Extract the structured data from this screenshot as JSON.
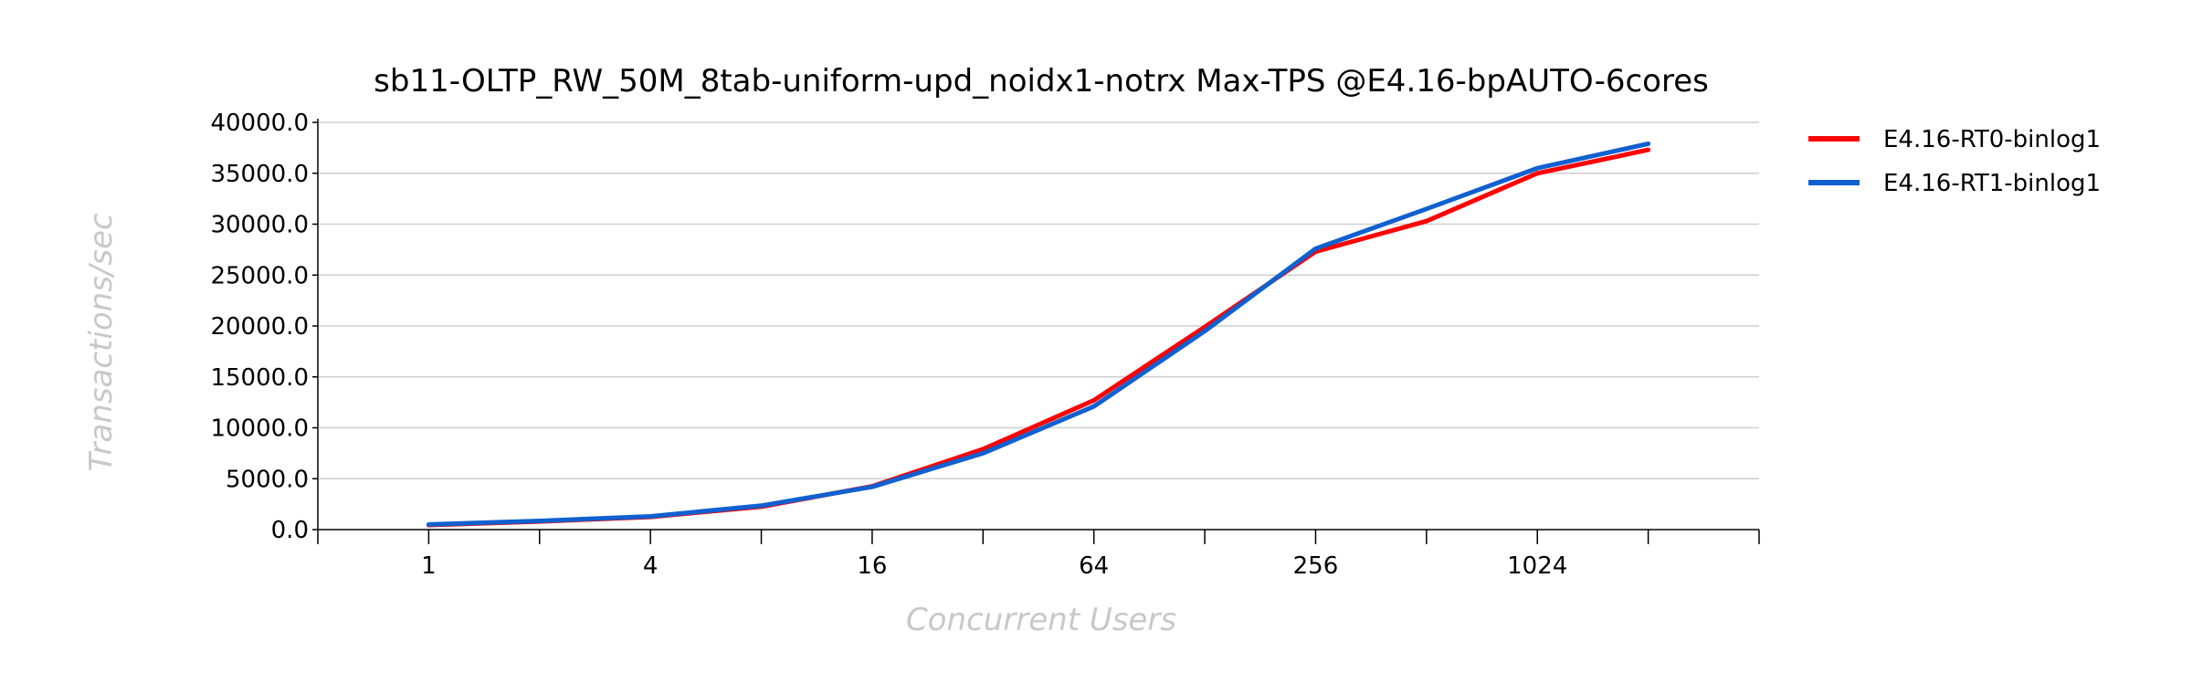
{
  "chart_data": {
    "type": "line",
    "title": "sb11-OLTP_RW_50M_8tab-uniform-upd_noidx1-notrx Max-TPS @E4.16-bpAUTO-6cores",
    "xlabel": "Concurrent Users",
    "ylabel": "Transactions/sec",
    "x_scale": "log2",
    "x": [
      1,
      2,
      4,
      8,
      16,
      32,
      64,
      128,
      256,
      512,
      1024,
      2048
    ],
    "x_tick_labels": [
      "1",
      "4",
      "16",
      "64",
      "256",
      "1024"
    ],
    "x_tick_values": [
      1,
      4,
      16,
      64,
      256,
      1024
    ],
    "xlim": [
      0.5,
      4096
    ],
    "ylim": [
      0,
      40000
    ],
    "y_ticks": [
      0,
      5000,
      10000,
      15000,
      20000,
      25000,
      30000,
      35000,
      40000
    ],
    "y_tick_labels": [
      "0.0",
      "5000.0",
      "10000.0",
      "15000.0",
      "20000.0",
      "25000.0",
      "30000.0",
      "35000.0",
      "40000.0"
    ],
    "grid": true,
    "legend_position": "right",
    "series": [
      {
        "name": "E4.16-RT0-binlog1",
        "color": "#ff0000",
        "values": [
          450,
          800,
          1250,
          2250,
          4250,
          7900,
          12700,
          19900,
          27300,
          30300,
          35000,
          37300
        ]
      },
      {
        "name": "E4.16-RT1-binlog1",
        "color": "#1060d0",
        "values": [
          500,
          850,
          1300,
          2350,
          4200,
          7500,
          12100,
          19500,
          27600,
          31500,
          35500,
          37900
        ]
      }
    ]
  }
}
